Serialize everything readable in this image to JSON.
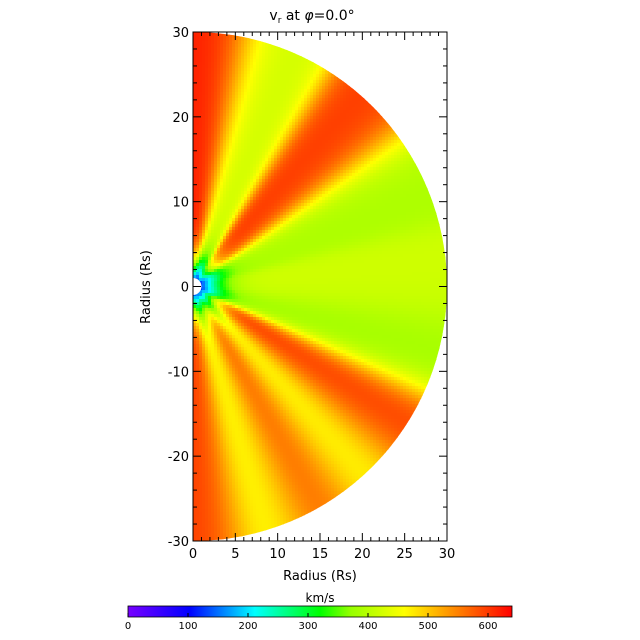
{
  "chart_data": {
    "type": "heatmap",
    "title": "v",
    "title_subscript": "r",
    "title_suffix": " at ",
    "title_phi_symbol": "φ",
    "title_phi_value": "=0.0°",
    "xlabel": "Radius (Rs)",
    "ylabel": "Radius (Rs)",
    "xlim": [
      0,
      30
    ],
    "ylim": [
      -30,
      30
    ],
    "xticks": [
      "0",
      "5",
      "10",
      "15",
      "20",
      "25",
      "30"
    ],
    "yticks": [
      "-30",
      "-20",
      "-10",
      "0",
      "10",
      "20",
      "30"
    ],
    "domain_shape": "half-disk",
    "domain_radius": 30,
    "inner_boundary_radius": 1,
    "grid": false,
    "colorbar": {
      "label": "km/s",
      "range": [
        0,
        640
      ],
      "ticks": [
        "0",
        "100",
        "200",
        "300",
        "400",
        "500",
        "600"
      ],
      "colormap": "rainbow (violet-blue-cyan-green-yellow-red)"
    },
    "features": [
      {
        "kind": "fast-wind stream",
        "polar_angle_deg": 3,
        "value_km_s": 620
      },
      {
        "kind": "fast-wind stream",
        "polar_angle_deg": 45,
        "value_km_s": 600
      },
      {
        "kind": "fast-wind stream",
        "polar_angle_deg": 125,
        "value_km_s": 610
      },
      {
        "kind": "fast-wind stream",
        "polar_angle_deg": 150,
        "value_km_s": 610
      },
      {
        "kind": "fast-wind stream",
        "polar_angle_deg": 177,
        "value_km_s": 600
      },
      {
        "kind": "slow-wind band",
        "polar_angle_deg": 20,
        "value_km_s": 420
      },
      {
        "kind": "slow-wind band",
        "polar_angle_deg": 62,
        "value_km_s": 390
      },
      {
        "kind": "slow-wind band",
        "polar_angle_deg": 90,
        "value_km_s": 420
      },
      {
        "kind": "slow-wind band",
        "polar_angle_deg": 105,
        "value_km_s": 380
      },
      {
        "kind": "slow-wind band",
        "polar_angle_deg": 138,
        "value_km_s": 420
      },
      {
        "kind": "slow-wind band",
        "polar_angle_deg": 162,
        "value_km_s": 430
      },
      {
        "kind": "near-Sun acceleration region",
        "radius_rs": 3,
        "value_km_s": 80
      }
    ]
  }
}
